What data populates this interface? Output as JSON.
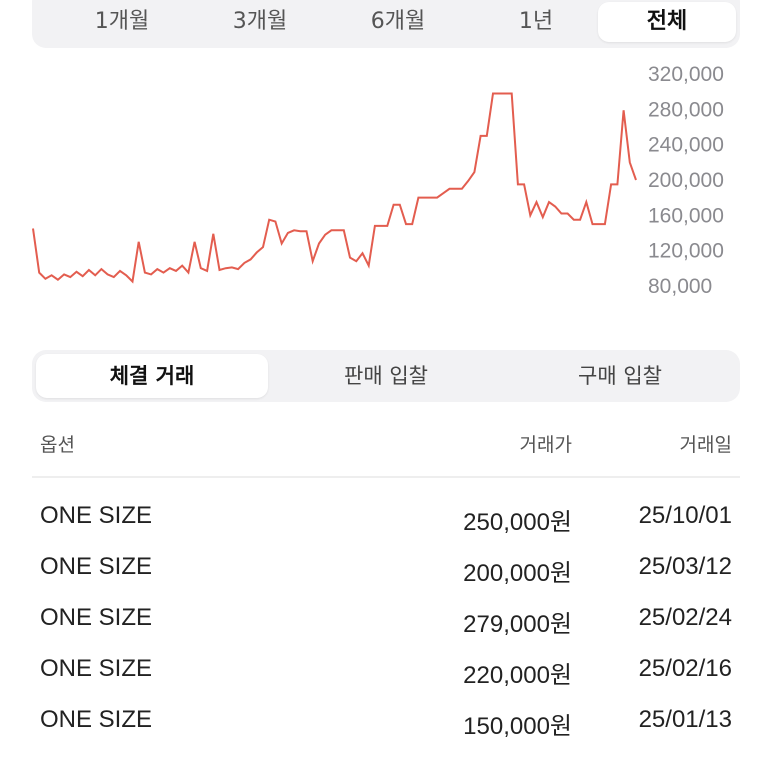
{
  "period_tabs": [
    {
      "label": "1개월",
      "active": false
    },
    {
      "label": "3개월",
      "active": false
    },
    {
      "label": "6개월",
      "active": false
    },
    {
      "label": "1년",
      "active": false
    },
    {
      "label": "전체",
      "active": true
    }
  ],
  "chart_data": {
    "type": "line",
    "title": "",
    "xlabel": "",
    "ylabel": "",
    "ylim": [
      64000,
      336000
    ],
    "y_ticks": [
      "320,000",
      "280,000",
      "240,000",
      "200,000",
      "160,000",
      "120,000",
      "80,000"
    ],
    "y_tick_values": [
      320000,
      280000,
      240000,
      200000,
      160000,
      120000,
      80000
    ],
    "grid": false,
    "line_color": "#e35d4f",
    "series": [
      {
        "name": "",
        "values": [
          145000,
          95000,
          88000,
          92000,
          87000,
          93000,
          90000,
          96000,
          91000,
          98000,
          92000,
          99000,
          93000,
          90000,
          97000,
          92000,
          85000,
          130000,
          95000,
          93000,
          99000,
          95000,
          100000,
          97000,
          103000,
          95000,
          130000,
          100000,
          97000,
          139000,
          98000,
          100000,
          101000,
          99000,
          106000,
          110000,
          118000,
          124000,
          155000,
          153000,
          128000,
          140000,
          143000,
          142000,
          142000,
          108000,
          128000,
          138000,
          143000,
          143000,
          143000,
          112000,
          108000,
          117000,
          103000,
          148000,
          148000,
          148000,
          172000,
          172000,
          150000,
          150000,
          180000,
          180000,
          180000,
          180000,
          185000,
          190000,
          190000,
          190000,
          199000,
          209000,
          250000,
          250000,
          298000,
          298000,
          298000,
          298000,
          195000,
          195000,
          160000,
          175000,
          158000,
          175000,
          170000,
          162000,
          162000,
          155000,
          155000,
          175000,
          150000,
          150000,
          150000,
          195000,
          195000,
          279000,
          220000,
          200000
        ]
      }
    ]
  },
  "trade_tabs": [
    {
      "label": "체결 거래",
      "active": true
    },
    {
      "label": "판매 입찰",
      "active": false
    },
    {
      "label": "구매 입찰",
      "active": false
    }
  ],
  "table": {
    "headers": {
      "option": "옵션",
      "price": "거래가",
      "date": "거래일"
    },
    "rows": [
      {
        "option": "ONE SIZE",
        "price": "250,000원",
        "date": "25/10/01"
      },
      {
        "option": "ONE SIZE",
        "price": "200,000원",
        "date": "25/03/12"
      },
      {
        "option": "ONE SIZE",
        "price": "279,000원",
        "date": "25/02/24"
      },
      {
        "option": "ONE SIZE",
        "price": "220,000원",
        "date": "25/02/16"
      },
      {
        "option": "ONE SIZE",
        "price": "150,000원",
        "date": "25/01/13"
      }
    ]
  }
}
